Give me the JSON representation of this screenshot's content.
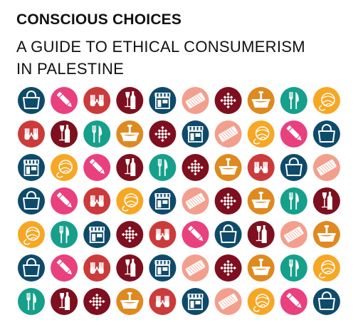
{
  "heading": {
    "title": "CONSCIOUS CHOICES",
    "subtitle_line1": "A GUIDE TO ETHICAL CONSUMERISM",
    "subtitle_line2": "IN PALESTINE"
  },
  "colors": {
    "navy": "#0e4a69",
    "pink": "#e8417d",
    "red": "#cc3b3b",
    "maroon": "#7d0f1e",
    "salmon": "#f2a08d",
    "orange": "#de8a21",
    "green": "#16a08c",
    "yellow": "#f6a724",
    "icon_fill": "#ffffff"
  },
  "icon_grid": [
    [
      "bag",
      "pencil",
      "hands",
      "bottle",
      "shop",
      "tray",
      "ornament",
      "basket",
      "cutlery",
      "yarn"
    ],
    [
      "hands",
      "bottle",
      "cutlery",
      "basket",
      "ornament",
      "shop",
      "tray",
      "yarn",
      "pencil",
      "bag"
    ],
    [
      "shop",
      "yarn",
      "pencil",
      "bottle",
      "cutlery",
      "ornament",
      "basket",
      "hands",
      "bag",
      "tray"
    ],
    [
      "bag",
      "pencil",
      "hands",
      "yarn",
      "shop",
      "tray",
      "ornament",
      "basket",
      "cutlery",
      "bottle"
    ],
    [
      "yarn",
      "cutlery",
      "shop",
      "ornament",
      "hands",
      "pencil",
      "bag",
      "bottle",
      "tray",
      "basket"
    ],
    [
      "bag",
      "pencil",
      "hands",
      "bottle",
      "shop",
      "tray",
      "ornament",
      "basket",
      "cutlery",
      "yarn"
    ],
    [
      "cutlery",
      "bottle",
      "ornament",
      "basket",
      "hands",
      "shop",
      "tray",
      "yarn",
      "pencil",
      "bag"
    ]
  ],
  "icon_colors": {
    "bag": "navy",
    "pencil": "pink",
    "hands": "red",
    "bottle": "maroon",
    "shop": "navy",
    "tray": "salmon",
    "ornament": "maroon",
    "basket": "orange",
    "cutlery": "green",
    "yarn": "yellow"
  }
}
